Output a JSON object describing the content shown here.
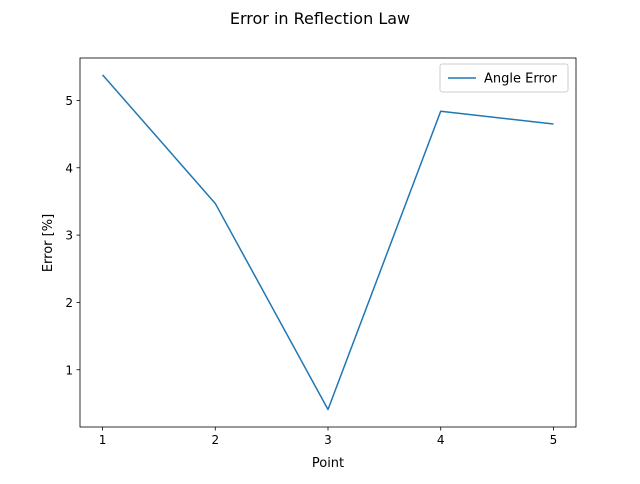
{
  "chart_data": {
    "type": "line",
    "title": "Error in Reflection Law",
    "xlabel": "Point",
    "ylabel": "Error [%]",
    "x": [
      1,
      2,
      3,
      4,
      5
    ],
    "xticks": [
      1,
      2,
      3,
      4,
      5
    ],
    "yticks": [
      1,
      2,
      3,
      4,
      5
    ],
    "xlim": [
      0.8,
      5.2
    ],
    "ylim": [
      0.15,
      5.63
    ],
    "grid": false,
    "legend_position": "upper right",
    "series": [
      {
        "name": "Angle Error",
        "color": "#1f77b4",
        "values": [
          5.38,
          3.47,
          0.41,
          4.84,
          4.65
        ]
      }
    ]
  }
}
